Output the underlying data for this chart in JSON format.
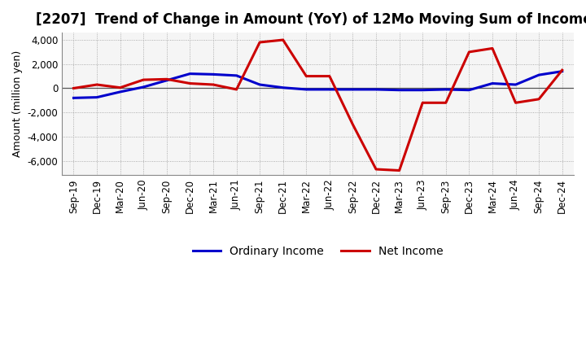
{
  "title": "[2207]  Trend of Change in Amount (YoY) of 12Mo Moving Sum of Incomes",
  "ylabel": "Amount (million yen)",
  "x_labels": [
    "Sep-19",
    "Dec-19",
    "Mar-20",
    "Jun-20",
    "Sep-20",
    "Dec-20",
    "Mar-21",
    "Jun-21",
    "Sep-21",
    "Dec-21",
    "Mar-22",
    "Jun-22",
    "Sep-22",
    "Dec-22",
    "Mar-23",
    "Jun-23",
    "Sep-23",
    "Dec-23",
    "Mar-24",
    "Jun-24",
    "Sep-24",
    "Dec-24"
  ],
  "ordinary_income": [
    -800,
    -750,
    -300,
    100,
    650,
    1200,
    1150,
    1050,
    300,
    50,
    -100,
    -100,
    -100,
    -100,
    -150,
    -150,
    -100,
    -150,
    400,
    300,
    1100,
    1400
  ],
  "net_income": [
    0,
    300,
    50,
    700,
    750,
    400,
    300,
    -100,
    3800,
    4000,
    1000,
    1000,
    -3000,
    -6700,
    -6800,
    -1200,
    -1200,
    3000,
    3300,
    -1200,
    -900,
    1500
  ],
  "ordinary_income_color": "#0000cc",
  "net_income_color": "#cc0000",
  "ylim": [
    -7200,
    4600
  ],
  "yticks": [
    -6000,
    -4000,
    -2000,
    0,
    2000,
    4000
  ],
  "bg_color": "#ffffff",
  "plot_bg_color": "#f5f5f5",
  "grid_color": "#999999",
  "line_width": 2.2,
  "legend_ordinary": "Ordinary Income",
  "legend_net": "Net Income",
  "title_fontsize": 12,
  "axis_fontsize": 9,
  "tick_fontsize": 8.5
}
